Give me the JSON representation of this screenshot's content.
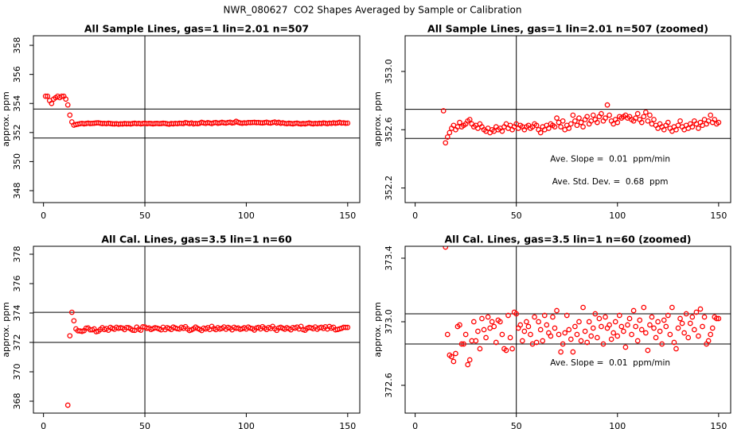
{
  "title": "NWR_080627  CO2 Shapes Averaged by Sample or Calibration",
  "chart_data": [
    {
      "type": "scatter",
      "title": "All Sample Lines, gas=1 lin=2.01 n=507",
      "ylabel": "approx. ppm",
      "color": "#ff0000",
      "xlim": [
        -4.96,
        155.96
      ],
      "ylim": [
        347.18,
        358.66
      ],
      "xticks": [
        0,
        50,
        100,
        150
      ],
      "yticks": [
        348,
        350,
        352,
        354,
        356,
        358
      ],
      "hlines": [
        353.62,
        351.62
      ],
      "vline": 50,
      "x": [
        1,
        2,
        3,
        4,
        5,
        6,
        7,
        8,
        9,
        10,
        11,
        12,
        13,
        14,
        15,
        16,
        17,
        18,
        19,
        20,
        21,
        22,
        23,
        24,
        25,
        26,
        27,
        28,
        29,
        30,
        31,
        32,
        33,
        34,
        35,
        36,
        37,
        38,
        39,
        40,
        41,
        42,
        43,
        44,
        45,
        46,
        47,
        48,
        49,
        50,
        51,
        52,
        53,
        54,
        55,
        56,
        57,
        58,
        59,
        60,
        61,
        62,
        63,
        64,
        65,
        66,
        67,
        68,
        69,
        70,
        71,
        72,
        73,
        74,
        75,
        76,
        77,
        78,
        79,
        80,
        81,
        82,
        83,
        84,
        85,
        86,
        87,
        88,
        89,
        90,
        91,
        92,
        93,
        94,
        95,
        96,
        97,
        98,
        99,
        100,
        101,
        102,
        103,
        104,
        105,
        106,
        107,
        108,
        109,
        110,
        111,
        112,
        113,
        114,
        115,
        116,
        117,
        118,
        119,
        120,
        121,
        122,
        123,
        124,
        125,
        126,
        127,
        128,
        129,
        130,
        131,
        132,
        133,
        134,
        135,
        136,
        137,
        138,
        139,
        140,
        141,
        142,
        143,
        144,
        145,
        146,
        147,
        148,
        149,
        150
      ],
      "values": [
        354.5,
        354.5,
        354.2,
        354.0,
        354.3,
        354.4,
        354.5,
        354.4,
        354.5,
        354.5,
        354.3,
        353.9,
        353.2,
        352.73,
        352.51,
        352.55,
        352.58,
        352.61,
        352.63,
        352.6,
        352.62,
        352.65,
        352.62,
        352.63,
        352.64,
        352.66,
        352.67,
        352.64,
        352.62,
        352.63,
        352.61,
        352.64,
        352.62,
        352.6,
        352.59,
        352.61,
        352.58,
        352.6,
        352.59,
        352.62,
        352.6,
        352.61,
        352.59,
        352.62,
        352.64,
        352.61,
        352.63,
        352.6,
        352.62,
        352.64,
        352.61,
        352.63,
        352.62,
        352.6,
        352.62,
        352.63,
        352.61,
        352.62,
        352.64,
        352.63,
        352.6,
        352.58,
        352.62,
        352.6,
        352.63,
        352.61,
        352.64,
        352.63,
        352.62,
        352.68,
        352.65,
        352.62,
        352.66,
        352.6,
        352.63,
        352.61,
        352.64,
        352.7,
        352.66,
        352.63,
        352.68,
        352.65,
        352.62,
        352.67,
        352.69,
        352.64,
        352.66,
        352.7,
        352.67,
        352.65,
        352.69,
        352.71,
        352.66,
        352.68,
        352.77,
        352.7,
        352.66,
        352.64,
        352.67,
        352.65,
        352.69,
        352.68,
        352.69,
        352.7,
        352.68,
        352.69,
        352.67,
        352.66,
        352.68,
        352.71,
        352.67,
        352.65,
        352.69,
        352.72,
        352.66,
        352.7,
        352.64,
        352.67,
        352.63,
        352.61,
        352.64,
        352.62,
        352.6,
        352.63,
        352.65,
        352.61,
        352.59,
        352.62,
        352.6,
        352.63,
        352.66,
        352.62,
        352.6,
        352.63,
        352.61,
        352.64,
        352.62,
        352.66,
        352.64,
        352.61,
        352.65,
        352.63,
        352.67,
        352.64,
        352.66,
        352.7,
        352.65,
        352.67,
        352.64,
        352.65
      ]
    },
    {
      "type": "scatter",
      "title": "All Sample Lines, gas=1 lin=2.01 n=507 (zoomed)",
      "ylabel": "approx. ppm",
      "color": "#ff0000",
      "xlim": [
        -4.96,
        155.96
      ],
      "ylim": [
        352.1,
        353.245
      ],
      "xticks": [
        0,
        50,
        100,
        150
      ],
      "yticks": [
        352.2,
        352.6,
        {
          "value": 353,
          "label": "353.0"
        }
      ],
      "hlines": [
        352.74,
        352.54
      ],
      "vline": 50,
      "annotations": [
        "Ave. Slope =  0.01  ppm/min",
        "Ave. Std. Dev. =  0.68  ppm"
      ],
      "x": [
        14,
        15,
        16,
        17,
        18,
        19,
        20,
        21,
        22,
        23,
        24,
        25,
        26,
        27,
        28,
        29,
        30,
        31,
        32,
        33,
        34,
        35,
        36,
        37,
        38,
        39,
        40,
        41,
        42,
        43,
        44,
        45,
        46,
        47,
        48,
        49,
        50,
        51,
        52,
        53,
        54,
        55,
        56,
        57,
        58,
        59,
        60,
        61,
        62,
        63,
        64,
        65,
        66,
        67,
        68,
        69,
        70,
        71,
        72,
        73,
        74,
        75,
        76,
        77,
        78,
        79,
        80,
        81,
        82,
        83,
        84,
        85,
        86,
        87,
        88,
        89,
        90,
        91,
        92,
        93,
        94,
        95,
        96,
        97,
        98,
        99,
        100,
        101,
        102,
        103,
        104,
        105,
        106,
        107,
        108,
        109,
        110,
        111,
        112,
        113,
        114,
        115,
        116,
        117,
        118,
        119,
        120,
        121,
        122,
        123,
        124,
        125,
        126,
        127,
        128,
        129,
        130,
        131,
        132,
        133,
        134,
        135,
        136,
        137,
        138,
        139,
        140,
        141,
        142,
        143,
        144,
        145,
        146,
        147,
        148,
        149,
        150
      ],
      "values": [
        352.73,
        352.51,
        352.55,
        352.58,
        352.61,
        352.63,
        352.6,
        352.62,
        352.65,
        352.62,
        352.63,
        352.64,
        352.66,
        352.67,
        352.64,
        352.62,
        352.63,
        352.61,
        352.64,
        352.62,
        352.6,
        352.59,
        352.61,
        352.58,
        352.6,
        352.59,
        352.62,
        352.6,
        352.61,
        352.59,
        352.62,
        352.64,
        352.61,
        352.63,
        352.6,
        352.62,
        352.64,
        352.61,
        352.63,
        352.62,
        352.6,
        352.62,
        352.63,
        352.61,
        352.62,
        352.64,
        352.63,
        352.6,
        352.58,
        352.62,
        352.6,
        352.63,
        352.61,
        352.64,
        352.63,
        352.62,
        352.68,
        352.65,
        352.62,
        352.66,
        352.6,
        352.63,
        352.61,
        352.64,
        352.7,
        352.66,
        352.63,
        352.68,
        352.65,
        352.62,
        352.67,
        352.69,
        352.64,
        352.66,
        352.7,
        352.67,
        352.65,
        352.69,
        352.71,
        352.66,
        352.68,
        352.77,
        352.7,
        352.66,
        352.64,
        352.67,
        352.65,
        352.69,
        352.68,
        352.69,
        352.7,
        352.68,
        352.69,
        352.67,
        352.66,
        352.68,
        352.71,
        352.67,
        352.65,
        352.69,
        352.72,
        352.66,
        352.7,
        352.64,
        352.67,
        352.63,
        352.61,
        352.64,
        352.62,
        352.6,
        352.63,
        352.65,
        352.61,
        352.59,
        352.62,
        352.6,
        352.63,
        352.66,
        352.62,
        352.6,
        352.63,
        352.61,
        352.64,
        352.62,
        352.66,
        352.64,
        352.61,
        352.65,
        352.63,
        352.67,
        352.64,
        352.66,
        352.7,
        352.65,
        352.67,
        352.64,
        352.65
      ]
    },
    {
      "type": "scatter",
      "title": "All Cal. Lines, gas=3.5 lin=1 n=60",
      "ylabel": "approx. ppm",
      "color": "#ff0000",
      "xlim": [
        -4.96,
        155.96
      ],
      "ylim": [
        367.19,
        378.54
      ],
      "xticks": [
        0,
        50,
        100,
        150
      ],
      "yticks": [
        368,
        370,
        372,
        374,
        376,
        378
      ],
      "hlines": [
        374.05,
        372.0
      ],
      "vline": 50,
      "x": [
        12,
        13,
        14,
        15,
        16,
        17,
        18,
        19,
        20,
        21,
        22,
        23,
        24,
        25,
        26,
        27,
        28,
        29,
        30,
        31,
        32,
        33,
        34,
        35,
        36,
        37,
        38,
        39,
        40,
        41,
        42,
        43,
        44,
        45,
        46,
        47,
        48,
        49,
        50,
        51,
        52,
        53,
        54,
        55,
        56,
        57,
        58,
        59,
        60,
        61,
        62,
        63,
        64,
        65,
        66,
        67,
        68,
        69,
        70,
        71,
        72,
        73,
        74,
        75,
        76,
        77,
        78,
        79,
        80,
        81,
        82,
        83,
        84,
        85,
        86,
        87,
        88,
        89,
        90,
        91,
        92,
        93,
        94,
        95,
        96,
        97,
        98,
        99,
        100,
        101,
        102,
        103,
        104,
        105,
        106,
        107,
        108,
        109,
        110,
        111,
        112,
        113,
        114,
        115,
        116,
        117,
        118,
        119,
        120,
        121,
        122,
        123,
        124,
        125,
        126,
        127,
        128,
        129,
        130,
        131,
        132,
        133,
        134,
        135,
        136,
        137,
        138,
        139,
        140,
        141,
        142,
        143,
        144,
        145,
        146,
        147,
        148,
        149,
        150
      ],
      "values": [
        367.73,
        372.45,
        374.05,
        373.47,
        372.92,
        372.79,
        372.78,
        372.75,
        372.8,
        372.97,
        372.98,
        372.86,
        372.86,
        372.92,
        372.73,
        372.76,
        372.88,
        373.0,
        372.88,
        372.94,
        372.83,
        373.02,
        372.95,
        372.9,
        373.03,
        372.96,
        373.0,
        372.97,
        372.87,
        373.01,
        373.0,
        372.92,
        372.83,
        372.82,
        373.04,
        372.9,
        372.83,
        373.06,
        373.05,
        372.96,
        372.98,
        372.88,
        372.94,
        373.0,
        372.97,
        372.92,
        372.86,
        373.03,
        372.87,
        373.0,
        372.95,
        372.88,
        373.04,
        372.98,
        372.93,
        372.91,
        373.03,
        372.96,
        373.07,
        372.92,
        372.81,
        372.86,
        372.93,
        373.04,
        372.95,
        372.89,
        372.81,
        372.97,
        372.92,
        373.0,
        372.88,
        373.09,
        372.94,
        372.87,
        373.0,
        372.91,
        372.96,
        373.05,
        372.9,
        373.02,
        372.97,
        372.86,
        373.03,
        372.96,
        372.98,
        372.89,
        372.93,
        373.0,
        372.91,
        373.04,
        372.97,
        372.94,
        372.84,
        372.98,
        373.02,
        372.92,
        373.07,
        372.97,
        372.88,
        373.01,
        372.95,
        373.09,
        372.93,
        372.82,
        372.98,
        373.03,
        372.96,
        372.9,
        373.0,
        372.94,
        372.86,
        373.01,
        372.97,
        373.04,
        372.92,
        373.09,
        372.87,
        372.83,
        372.96,
        373.02,
        372.99,
        372.93,
        373.05,
        372.9,
        372.99,
        373.03,
        372.95,
        373.06,
        372.91,
        373.08,
        372.97,
        373.03,
        372.86,
        372.88,
        372.92,
        372.96,
        373.03,
        373.02,
        373.02
      ]
    },
    {
      "type": "scatter",
      "title": "All Cal. Lines, gas=3.5 lin=1 n=60 (zoomed)",
      "ylabel": "approx. ppm",
      "color": "#ff0000",
      "xlim": [
        -4.96,
        155.96
      ],
      "ylim": [
        372.425,
        373.475
      ],
      "xticks": [
        0,
        50,
        100,
        150
      ],
      "yticks": [
        372.6,
        {
          "value": 373,
          "label": "373.0"
        },
        373.4
      ],
      "hlines": [
        373.05,
        372.86
      ],
      "vline": 50,
      "annotations": [
        "Ave. Slope =  0.01  ppm/min"
      ],
      "x": [
        15,
        16,
        17,
        18,
        19,
        20,
        21,
        22,
        23,
        24,
        25,
        26,
        27,
        28,
        29,
        30,
        31,
        32,
        33,
        34,
        35,
        36,
        37,
        38,
        39,
        40,
        41,
        42,
        43,
        44,
        45,
        46,
        47,
        48,
        49,
        50,
        51,
        52,
        53,
        54,
        55,
        56,
        57,
        58,
        59,
        60,
        61,
        62,
        63,
        64,
        65,
        66,
        67,
        68,
        69,
        70,
        71,
        72,
        73,
        74,
        75,
        76,
        77,
        78,
        79,
        80,
        81,
        82,
        83,
        84,
        85,
        86,
        87,
        88,
        89,
        90,
        91,
        92,
        93,
        94,
        95,
        96,
        97,
        98,
        99,
        100,
        101,
        102,
        103,
        104,
        105,
        106,
        107,
        108,
        109,
        110,
        111,
        112,
        113,
        114,
        115,
        116,
        117,
        118,
        119,
        120,
        121,
        122,
        123,
        124,
        125,
        126,
        127,
        128,
        129,
        130,
        131,
        132,
        133,
        134,
        135,
        136,
        137,
        138,
        139,
        140,
        141,
        142,
        143,
        144,
        145,
        146,
        147,
        148,
        149,
        150
      ],
      "values": [
        373.47,
        372.92,
        372.79,
        372.78,
        372.75,
        372.8,
        372.97,
        372.98,
        372.86,
        372.86,
        372.92,
        372.73,
        372.76,
        372.88,
        373.0,
        372.88,
        372.94,
        372.83,
        373.02,
        372.95,
        372.9,
        373.03,
        372.96,
        373.0,
        372.97,
        372.87,
        373.01,
        373.0,
        372.92,
        372.83,
        372.82,
        373.04,
        372.9,
        372.83,
        373.06,
        373.05,
        372.96,
        372.98,
        372.88,
        372.94,
        373.0,
        372.97,
        372.92,
        372.86,
        373.03,
        372.87,
        373.0,
        372.95,
        372.88,
        373.04,
        372.98,
        372.93,
        372.91,
        373.03,
        372.96,
        373.07,
        372.92,
        372.81,
        372.86,
        372.93,
        373.04,
        372.95,
        372.89,
        372.81,
        372.97,
        372.92,
        373.0,
        372.88,
        373.09,
        372.94,
        372.87,
        373.0,
        372.91,
        372.96,
        373.05,
        372.9,
        373.02,
        372.97,
        372.86,
        373.03,
        372.96,
        372.98,
        372.89,
        372.93,
        373.0,
        372.91,
        373.04,
        372.97,
        372.94,
        372.84,
        372.98,
        373.02,
        372.92,
        373.07,
        372.97,
        372.88,
        373.01,
        372.95,
        373.09,
        372.93,
        372.82,
        372.98,
        373.03,
        372.96,
        372.9,
        373.0,
        372.94,
        372.86,
        373.01,
        372.97,
        373.04,
        372.92,
        373.09,
        372.87,
        372.83,
        372.96,
        373.02,
        372.99,
        372.93,
        373.05,
        372.9,
        372.99,
        373.03,
        372.95,
        373.06,
        372.91,
        373.08,
        372.97,
        373.03,
        372.86,
        372.88,
        372.92,
        372.96,
        373.03,
        373.02,
        373.02
      ]
    }
  ]
}
